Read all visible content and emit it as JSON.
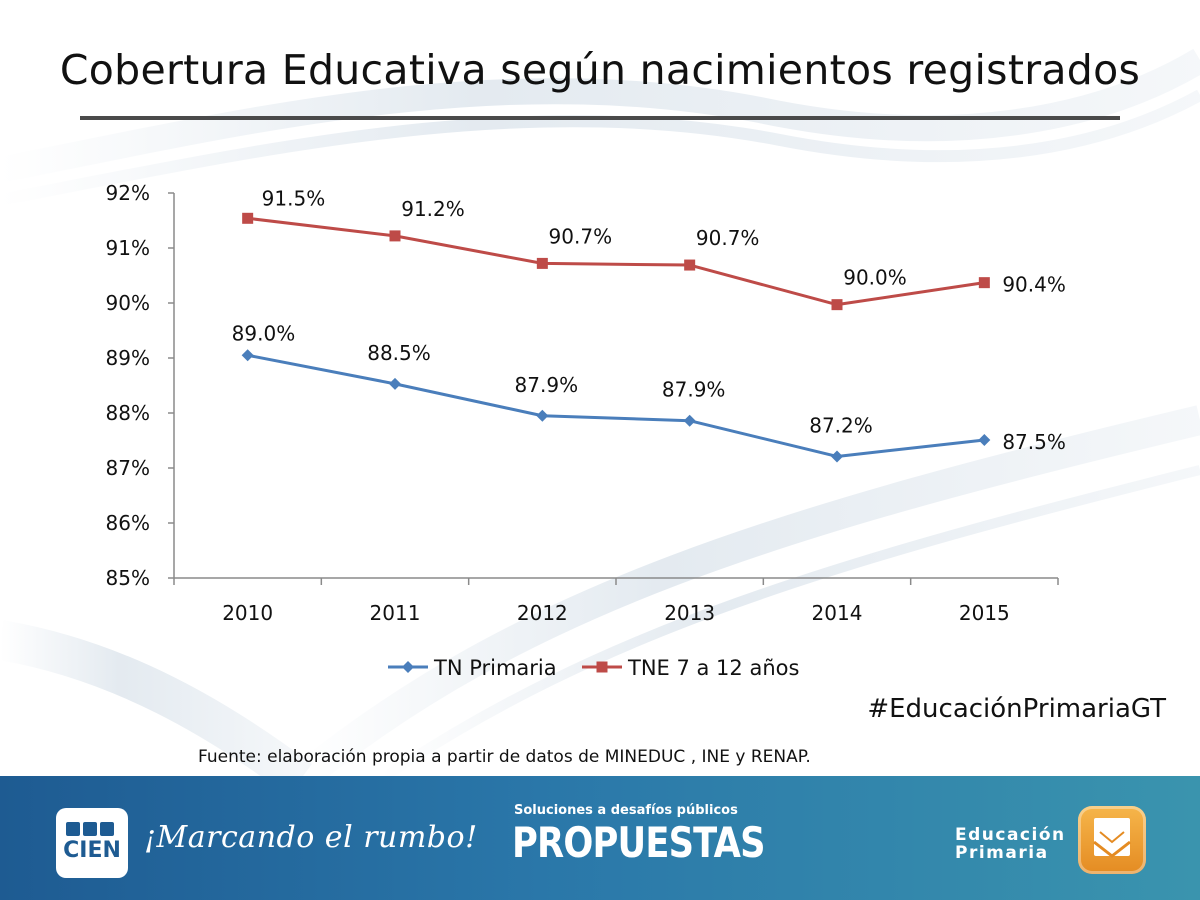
{
  "page_title": "Cobertura Educativa según nacimientos registrados",
  "hashtag": "#EducaciónPrimariaGT",
  "source_note": "Fuente: elaboración propia a partir de datos de MINEDUC , INE y RENAP.",
  "footer": {
    "brand_left": "CIEN",
    "slogan": "¡Marcando el rumbo!",
    "center_subtitle": "Soluciones a desafíos públicos",
    "center_title": "PROPUESTAS",
    "right_line1": "Educación",
    "right_line2": "Primaria",
    "background_color": "#2a77a9"
  },
  "chart_data": {
    "type": "line",
    "title": "Cobertura Educativa según nacimientos registrados",
    "xlabel": "",
    "ylabel": "",
    "categories": [
      "2010",
      "2011",
      "2012",
      "2013",
      "2014",
      "2015"
    ],
    "ylim": [
      85,
      92
    ],
    "yticks": [
      85,
      86,
      87,
      88,
      89,
      90,
      91,
      92
    ],
    "ytick_labels": [
      "85%",
      "86%",
      "87%",
      "88%",
      "89%",
      "90%",
      "91%",
      "92%"
    ],
    "grid": false,
    "legend_position": "bottom",
    "series": [
      {
        "name": "TN Primaria",
        "values": [
          89.05,
          88.53,
          87.95,
          87.86,
          87.21,
          87.51
        ],
        "labels": [
          "89.0%",
          "88.5%",
          "87.9%",
          "87.9%",
          "87.2%",
          "87.5%"
        ],
        "color": "#4a7ebb",
        "marker": "diamond"
      },
      {
        "name": "TNE 7 a 12 años",
        "values": [
          91.54,
          91.22,
          90.72,
          90.69,
          89.97,
          90.37
        ],
        "labels": [
          "91.5%",
          "91.2%",
          "90.7%",
          "90.7%",
          "90.0%",
          "90.4%"
        ],
        "color": "#be4b48",
        "marker": "square"
      }
    ]
  }
}
